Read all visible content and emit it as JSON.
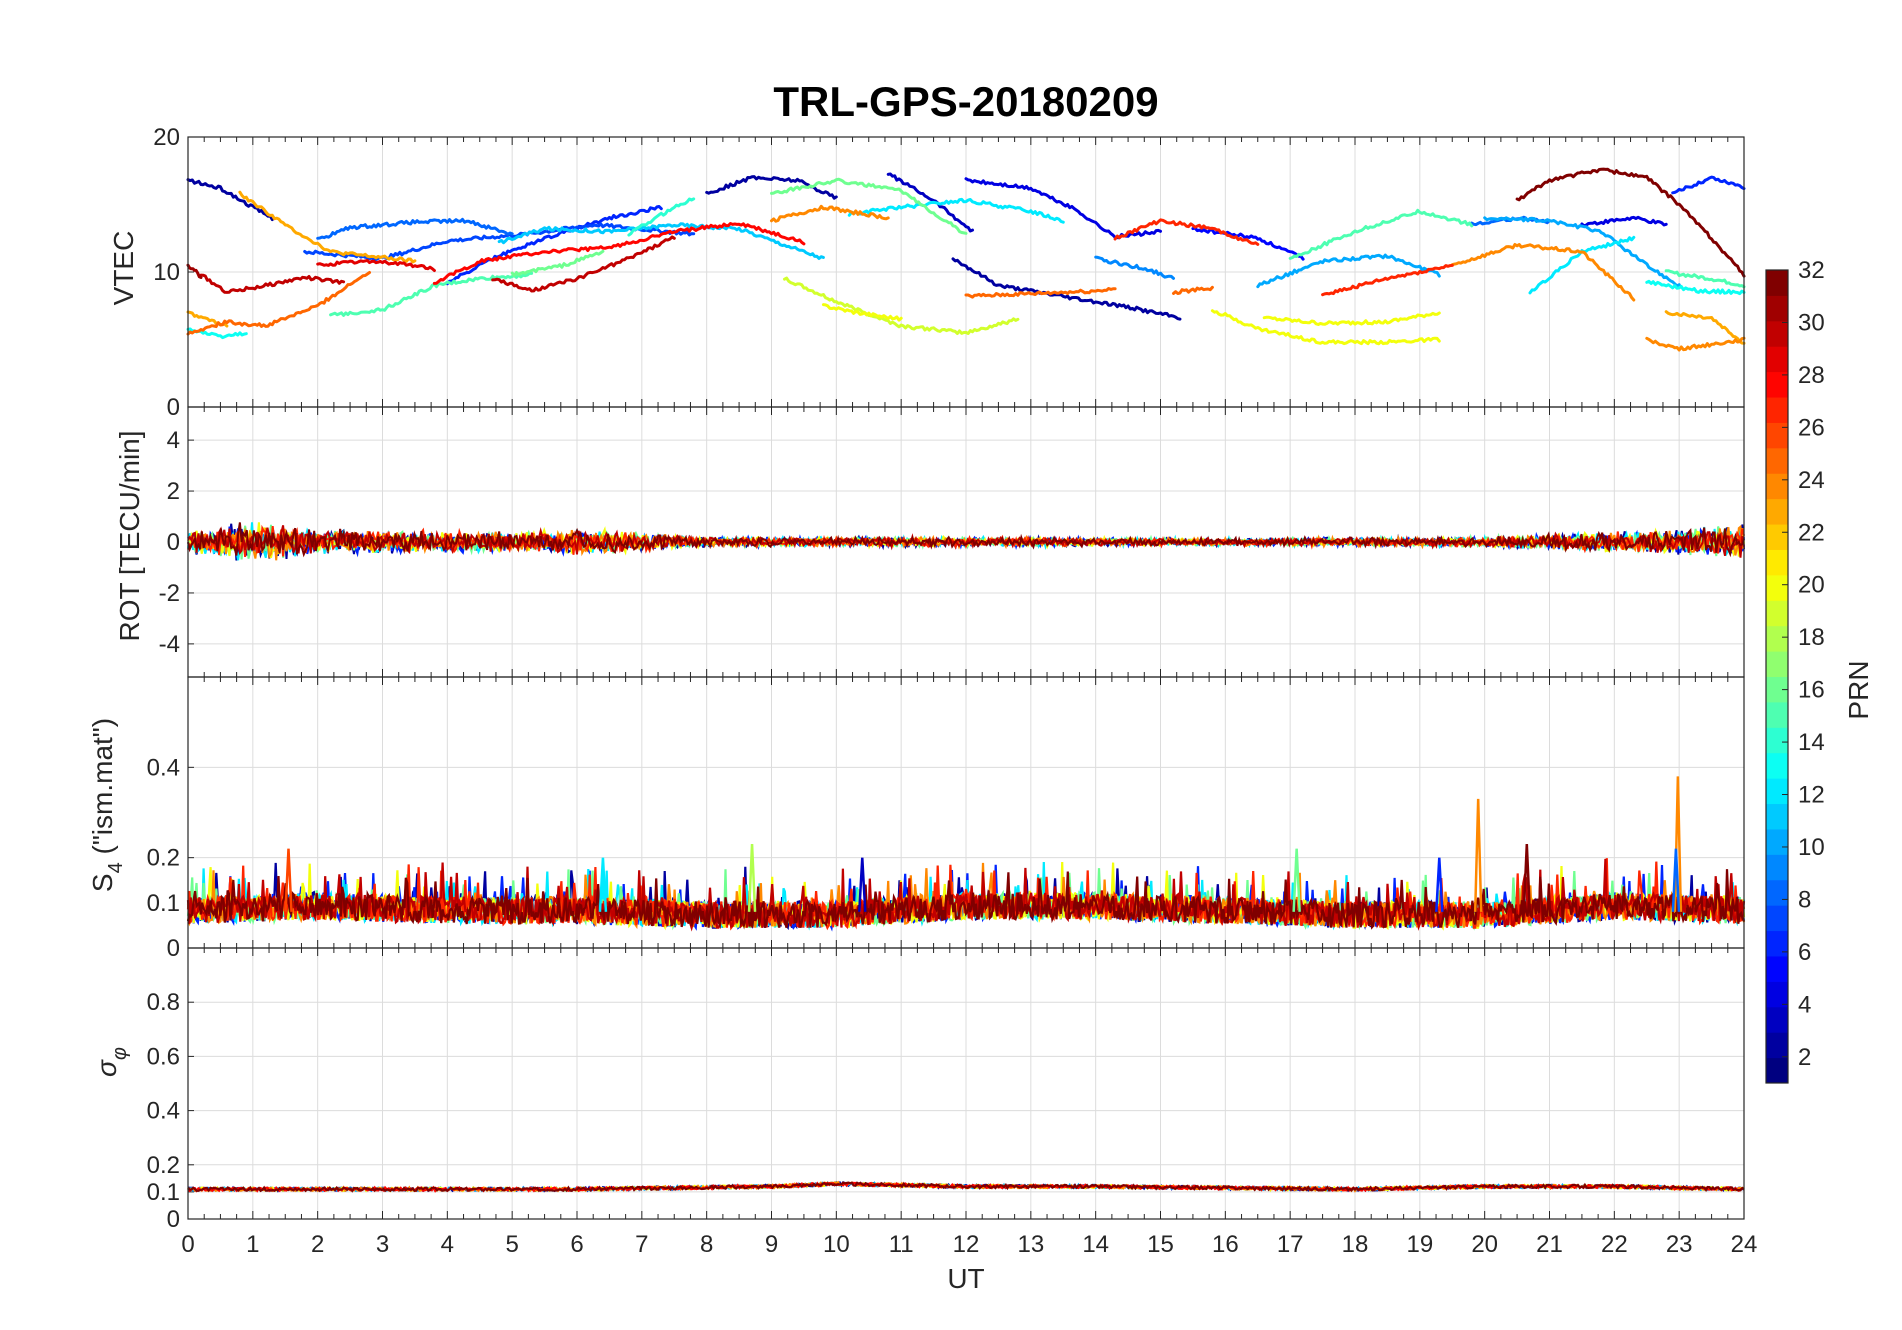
{
  "chart_data": [
    {
      "panel": "vtec",
      "type": "line",
      "title": "TRL-GPS-20180209",
      "xlabel": "",
      "ylabel": "VTEC",
      "xlim": [
        0,
        24
      ],
      "ylim": [
        0,
        20
      ],
      "yticks": [
        "0",
        "10",
        "20"
      ],
      "grid": true,
      "series": [
        {
          "prn": 2,
          "x": [
            0,
            0.5,
            1.0,
            1.3
          ],
          "y": [
            16.8,
            16.2,
            14.8,
            14.0
          ]
        },
        {
          "prn": 2,
          "x": [
            8.0,
            8.7,
            9.4,
            10.0
          ],
          "y": [
            15.8,
            17.0,
            16.8,
            15.5
          ]
        },
        {
          "prn": 2,
          "x": [
            11.8,
            12.5,
            13.5,
            14.5,
            15.3
          ],
          "y": [
            11.0,
            9.0,
            8.2,
            7.4,
            6.6
          ]
        },
        {
          "prn": 3,
          "x": [
            10.8,
            11.5,
            12.1
          ],
          "y": [
            17.3,
            15.3,
            13.0
          ]
        },
        {
          "prn": 4,
          "x": [
            12.0,
            13.0,
            13.7,
            14.3,
            15.0
          ],
          "y": [
            16.8,
            16.2,
            14.6,
            12.6,
            13.0
          ]
        },
        {
          "prn": 4,
          "x": [
            21.5,
            22.3,
            22.8
          ],
          "y": [
            13.5,
            14.0,
            13.5
          ]
        },
        {
          "prn": 5,
          "x": [
            15.5,
            16.5,
            17.2
          ],
          "y": [
            13.2,
            12.5,
            11.0
          ]
        },
        {
          "prn": 6,
          "x": [
            4.0,
            4.7,
            5.5,
            6.5,
            7.3
          ],
          "y": [
            9.2,
            11.0,
            12.5,
            14.0,
            14.8
          ]
        },
        {
          "prn": 6,
          "x": [
            22.9,
            23.5,
            24.0
          ],
          "y": [
            15.8,
            17.0,
            16.3
          ]
        },
        {
          "prn": 7,
          "x": [
            1.8,
            3.0,
            4.0,
            5.2,
            6.3,
            7.8
          ],
          "y": [
            11.5,
            11.0,
            12.3,
            12.8,
            13.5,
            12.8
          ]
        },
        {
          "prn": 8,
          "x": [
            2.0,
            2.5,
            3.5,
            4.3,
            5.0
          ],
          "y": [
            12.4,
            13.3,
            13.7,
            13.8,
            12.8
          ]
        },
        {
          "prn": 8,
          "x": [
            19.8,
            20.5,
            21.0
          ],
          "y": [
            13.5,
            14.0,
            13.7
          ]
        },
        {
          "prn": 9,
          "x": [
            14.0,
            14.8,
            15.2
          ],
          "y": [
            11.0,
            10.2,
            9.5
          ]
        },
        {
          "prn": 10,
          "x": [
            16.5,
            17.5,
            18.5,
            19.3
          ],
          "y": [
            9.0,
            10.8,
            11.2,
            9.8
          ]
        },
        {
          "prn": 10,
          "x": [
            20.0,
            21.0,
            21.8,
            22.5,
            23.0
          ],
          "y": [
            14.0,
            13.8,
            13.0,
            10.5,
            9.0
          ]
        },
        {
          "prn": 11,
          "x": [
            4.8,
            5.5,
            6.5,
            7.5,
            8.5,
            9.8
          ],
          "y": [
            12.2,
            13.2,
            13.0,
            13.5,
            13.2,
            11.0
          ]
        },
        {
          "prn": 12,
          "x": [
            10.2,
            11.0,
            12.0,
            13.0,
            13.5
          ],
          "y": [
            14.3,
            14.8,
            15.3,
            14.5,
            13.8
          ]
        },
        {
          "prn": 12,
          "x": [
            20.7,
            21.5,
            22.3
          ],
          "y": [
            8.5,
            11.5,
            12.5
          ]
        },
        {
          "prn": 13,
          "x": [
            0.0,
            0.5,
            0.9
          ],
          "y": [
            5.8,
            5.2,
            5.5
          ]
        },
        {
          "prn": 13,
          "x": [
            22.5,
            23.3,
            24.0
          ],
          "y": [
            9.3,
            8.6,
            8.5
          ]
        },
        {
          "prn": 14,
          "x": [
            6.8,
            7.5,
            7.8
          ],
          "y": [
            12.8,
            14.8,
            15.5
          ]
        },
        {
          "prn": 15,
          "x": [
            2.2,
            3.0,
            3.8,
            4.5,
            5.3
          ],
          "y": [
            6.8,
            7.2,
            9.0,
            9.5,
            9.8
          ]
        },
        {
          "prn": 15,
          "x": [
            17.0,
            18.0,
            19.0,
            19.8
          ],
          "y": [
            11.0,
            13.0,
            14.5,
            13.5
          ]
        },
        {
          "prn": 15,
          "x": [
            22.8,
            23.5,
            24.0
          ],
          "y": [
            10.0,
            9.5,
            9.0
          ]
        },
        {
          "prn": 16,
          "x": [
            9.0,
            10.0,
            11.0,
            12.0
          ],
          "y": [
            15.8,
            16.8,
            16.0,
            12.8
          ]
        },
        {
          "prn": 16,
          "x": [
            5.0,
            5.8,
            6.4
          ],
          "y": [
            9.8,
            10.5,
            11.5
          ]
        },
        {
          "prn": 19,
          "x": [
            9.2,
            10.0,
            11.0,
            12.0,
            12.8
          ],
          "y": [
            9.5,
            7.8,
            6.0,
            5.5,
            6.5
          ]
        },
        {
          "prn": 20,
          "x": [
            9.8,
            10.3,
            11.0
          ],
          "y": [
            7.5,
            7.0,
            6.5
          ]
        },
        {
          "prn": 20,
          "x": [
            15.8,
            16.5,
            17.5,
            18.5,
            19.3
          ],
          "y": [
            7.2,
            5.8,
            4.8,
            4.8,
            5.0
          ]
        },
        {
          "prn": 20,
          "x": [
            16.6,
            17.5,
            18.5,
            19.3
          ],
          "y": [
            6.6,
            6.2,
            6.3,
            7.0
          ]
        },
        {
          "prn": 23,
          "x": [
            0.8,
            1.5,
            2.2,
            3.5
          ],
          "y": [
            15.8,
            13.5,
            11.5,
            10.8
          ]
        },
        {
          "prn": 23,
          "x": [
            0.0,
            0.3,
            0.6
          ],
          "y": [
            7.0,
            6.5,
            6.0
          ]
        },
        {
          "prn": 23,
          "x": [
            22.8,
            23.5,
            24.0
          ],
          "y": [
            7.0,
            6.6,
            4.7
          ]
        },
        {
          "prn": 24,
          "x": [
            9.0,
            9.8,
            10.8
          ],
          "y": [
            13.8,
            14.8,
            14.0
          ]
        },
        {
          "prn": 24,
          "x": [
            19.5,
            20.5,
            21.5,
            22.3
          ],
          "y": [
            10.5,
            12.0,
            11.5,
            8.0
          ]
        },
        {
          "prn": 24,
          "x": [
            22.5,
            23.0,
            24.0
          ],
          "y": [
            5.0,
            4.3,
            5.0
          ]
        },
        {
          "prn": 25,
          "x": [
            0.0,
            0.6,
            1.2,
            2.0,
            2.8
          ],
          "y": [
            5.5,
            6.3,
            6.0,
            7.5,
            10.0
          ]
        },
        {
          "prn": 25,
          "x": [
            12.0,
            13.0,
            14.0,
            14.3
          ],
          "y": [
            8.2,
            8.4,
            8.6,
            8.8
          ]
        },
        {
          "prn": 25,
          "x": [
            15.2,
            15.8
          ],
          "y": [
            8.5,
            8.8
          ]
        },
        {
          "prn": 27,
          "x": [
            14.3,
            15.0,
            15.8,
            16.5
          ],
          "y": [
            12.5,
            13.8,
            13.2,
            12.0
          ]
        },
        {
          "prn": 27,
          "x": [
            17.5,
            18.5,
            19.5
          ],
          "y": [
            8.3,
            9.5,
            10.5
          ]
        },
        {
          "prn": 28,
          "x": [
            3.8,
            4.5,
            5.5,
            6.5,
            7.5,
            8.5,
            9.5
          ],
          "y": [
            9.2,
            10.8,
            11.5,
            11.8,
            13.0,
            13.6,
            12.2
          ]
        },
        {
          "prn": 29,
          "x": [
            2.0,
            2.8,
            3.5,
            3.8
          ],
          "y": [
            10.5,
            10.8,
            10.5,
            10.2
          ]
        },
        {
          "prn": 30,
          "x": [
            0.2,
            0.6,
            1.2,
            1.8,
            2.4
          ],
          "y": [
            9.8,
            8.5,
            9.0,
            9.6,
            9.2
          ]
        },
        {
          "prn": 30,
          "x": [
            4.7,
            5.3,
            6.0,
            6.8,
            7.5
          ],
          "y": [
            9.5,
            8.6,
            9.5,
            11.0,
            12.6
          ]
        },
        {
          "prn": 31,
          "x": [
            0.0,
            0.1,
            0.2
          ],
          "y": [
            10.5,
            10.2,
            9.5
          ]
        },
        {
          "prn": 32,
          "x": [
            20.5,
            21.0,
            21.8,
            22.5,
            23.0,
            23.5,
            24.0
          ],
          "y": [
            15.3,
            16.8,
            17.6,
            17.0,
            15.0,
            12.5,
            9.8
          ]
        }
      ]
    },
    {
      "panel": "rot",
      "type": "line",
      "xlabel": "",
      "ylabel": "ROT [TECU/min]",
      "xlim": [
        0,
        24
      ],
      "ylim": [
        -5.3,
        5.3
      ],
      "yticks": [
        "-4",
        "-2",
        "0",
        "2",
        "4"
      ],
      "grid": true,
      "envelope": {
        "x": [
          0,
          1,
          2,
          3,
          5,
          6,
          8,
          12,
          16,
          20,
          23,
          24
        ],
        "y": [
          0.9,
          1.7,
          1.0,
          0.9,
          0.8,
          1.1,
          0.4,
          0.4,
          0.3,
          0.4,
          1.0,
          1.4
        ]
      },
      "prn_bands": [
        2,
        6,
        12,
        16,
        20,
        24,
        27,
        30,
        32
      ]
    },
    {
      "panel": "s4",
      "type": "line",
      "xlabel": "",
      "ylabel": "S4 (\"ism.mat\")",
      "xlim": [
        0,
        24
      ],
      "ylim": [
        0,
        0.6
      ],
      "yticks": [
        "0",
        "0.1",
        "0.2",
        "0.4"
      ],
      "grid": true,
      "baseline": {
        "x": [
          0,
          2,
          4,
          6,
          8,
          10,
          12,
          14,
          16,
          18,
          20,
          22,
          24
        ],
        "y": [
          0.08,
          0.09,
          0.08,
          0.08,
          0.07,
          0.07,
          0.09,
          0.09,
          0.08,
          0.07,
          0.07,
          0.09,
          0.08
        ]
      },
      "spikes": [
        {
          "prn": 24,
          "x": 19.9,
          "y": 0.33
        },
        {
          "prn": 32,
          "x": 20.65,
          "y": 0.23
        },
        {
          "prn": 24,
          "x": 22.98,
          "y": 0.38
        },
        {
          "prn": 8,
          "x": 22.95,
          "y": 0.22
        },
        {
          "prn": 18,
          "x": 8.7,
          "y": 0.23
        },
        {
          "prn": 16,
          "x": 17.1,
          "y": 0.22
        },
        {
          "prn": 26,
          "x": 1.55,
          "y": 0.22
        },
        {
          "prn": 12,
          "x": 6.4,
          "y": 0.2
        },
        {
          "prn": 3,
          "x": 10.4,
          "y": 0.2
        },
        {
          "prn": 6,
          "x": 19.3,
          "y": 0.2
        }
      ],
      "prn_bands": [
        2,
        6,
        12,
        16,
        20,
        24,
        27,
        30,
        32
      ]
    },
    {
      "panel": "sigma_phi",
      "type": "line",
      "xlabel": "UT",
      "ylabel": "σφ",
      "xlim": [
        0,
        24
      ],
      "ylim": [
        0,
        1
      ],
      "yticks": [
        "0",
        "0.1",
        "0.2",
        "0.4",
        "0.6",
        "0.8"
      ],
      "xticks": [
        "0",
        "1",
        "2",
        "3",
        "4",
        "5",
        "6",
        "7",
        "8",
        "9",
        "10",
        "11",
        "12",
        "13",
        "14",
        "15",
        "16",
        "17",
        "18",
        "19",
        "20",
        "21",
        "22",
        "23",
        "24"
      ],
      "grid": true,
      "baseline": {
        "x": [
          0,
          6,
          9,
          10,
          12,
          14,
          18,
          20,
          22,
          24
        ],
        "y": [
          0.11,
          0.11,
          0.12,
          0.13,
          0.12,
          0.12,
          0.11,
          0.12,
          0.12,
          0.11
        ]
      },
      "prn_bands": [
        2,
        10,
        20,
        24,
        28,
        32
      ]
    }
  ],
  "colorbar": {
    "label": "PRN",
    "ticks": [
      "2",
      "4",
      "6",
      "8",
      "10",
      "12",
      "14",
      "16",
      "18",
      "20",
      "22",
      "24",
      "26",
      "28",
      "30",
      "32"
    ],
    "range": [
      1,
      32
    ],
    "colormap": "jet"
  },
  "axis_labels": {
    "title": "TRL-GPS-20180209",
    "vtec": "VTEC",
    "rot": "ROT [TECU/min]",
    "s4_main": "S",
    "s4_sub": "4",
    "s4_rest": " (\"ism.mat\")",
    "sigma_main": "σ",
    "sigma_sub": "φ",
    "ut": "UT",
    "prn": "PRN"
  }
}
